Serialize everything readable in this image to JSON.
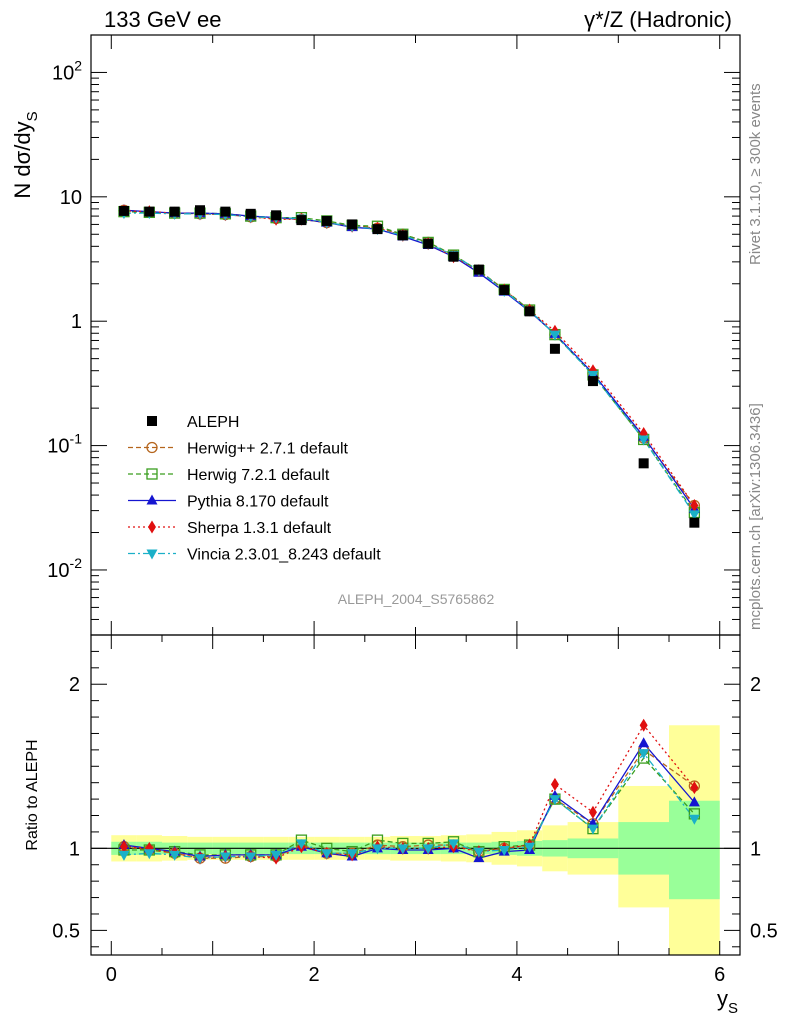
{
  "header": {
    "left": "133 GeV ee",
    "right": "γ*/Z (Hadronic)"
  },
  "side_labels": {
    "rivet": "Rivet 3.1.10, ≥ 300k events",
    "mcplots": "mcplots.cern.ch [arXiv:1306.3436]"
  },
  "watermark": "ALEPH_2004_S5765862",
  "chart_data": [
    {
      "type": "line",
      "title": "133 GeV ee",
      "xlabel": "y_S",
      "ylabel": "N dσ/dy_S",
      "xlim": [
        -0.2,
        6.2
      ],
      "ylim": [
        0.003,
        200
      ],
      "yscale": "log",
      "y_tick_labels": [
        "10^{-2}",
        "10^{-1}",
        "1",
        "10",
        "10^{2}"
      ],
      "x": [
        0.125,
        0.375,
        0.625,
        0.875,
        1.125,
        1.375,
        1.625,
        1.875,
        2.125,
        2.375,
        2.625,
        2.875,
        3.125,
        3.375,
        3.625,
        3.875,
        4.125,
        4.375,
        4.75,
        5.25,
        5.75
      ],
      "data": {
        "name": "ALEPH",
        "values": [
          7.7,
          7.6,
          7.6,
          7.8,
          7.6,
          7.3,
          7.1,
          6.5,
          6.4,
          6.0,
          5.5,
          4.9,
          4.2,
          3.3,
          2.6,
          1.78,
          1.2,
          0.6,
          0.33,
          0.072,
          0.024
        ]
      },
      "series": [
        {
          "name": "Herwig++ 2.7.1 default",
          "color": "#b5651d",
          "values": [
            7.8,
            7.5,
            7.4,
            7.3,
            7.2,
            6.9,
            6.7,
            6.6,
            6.2,
            5.9,
            5.6,
            5.0,
            4.3,
            3.4,
            2.55,
            1.78,
            1.23,
            0.78,
            0.38,
            0.115,
            0.033
          ]
        },
        {
          "name": "Herwig 7.2.1 default",
          "color": "#3a9e1f",
          "values": [
            7.6,
            7.5,
            7.4,
            7.4,
            7.3,
            7.0,
            6.8,
            6.8,
            6.4,
            5.9,
            5.8,
            5.0,
            4.3,
            3.4,
            2.55,
            1.8,
            1.23,
            0.78,
            0.37,
            0.112,
            0.029
          ]
        },
        {
          "name": "Pythia 8.170 default",
          "color": "#1515d0",
          "values": [
            7.8,
            7.6,
            7.4,
            7.4,
            7.3,
            7.0,
            6.8,
            6.6,
            6.2,
            5.7,
            5.5,
            4.8,
            4.1,
            3.3,
            2.45,
            1.73,
            1.2,
            0.79,
            0.38,
            0.118,
            0.031
          ]
        },
        {
          "name": "Sherpa 1.3.1 default",
          "color": "#e01010",
          "values": [
            7.7,
            7.6,
            7.4,
            7.3,
            7.2,
            6.9,
            6.6,
            6.6,
            6.2,
            5.8,
            5.6,
            4.9,
            4.2,
            3.3,
            2.55,
            1.78,
            1.23,
            0.83,
            0.4,
            0.125,
            0.033
          ]
        },
        {
          "name": "Vincia 2.3.01_8.243 default",
          "color": "#1bb0c8",
          "values": [
            7.4,
            7.4,
            7.3,
            7.3,
            7.2,
            6.9,
            6.8,
            6.7,
            6.2,
            5.8,
            5.5,
            4.9,
            4.2,
            3.4,
            2.55,
            1.75,
            1.22,
            0.78,
            0.37,
            0.112,
            0.028
          ]
        }
      ]
    },
    {
      "type": "line",
      "title": "",
      "xlabel": "y_S",
      "ylabel": "Ratio to ALEPH",
      "xlim": [
        -0.2,
        6.2
      ],
      "ylim": [
        0.35,
        2.3
      ],
      "x_ticks": [
        0,
        2,
        4,
        6
      ],
      "y_ticks": [
        0.5,
        1,
        2
      ],
      "reference_line": 1,
      "bands": {
        "x_edges": [
          0,
          0.25,
          0.5,
          0.75,
          1.0,
          1.25,
          1.5,
          1.75,
          2.0,
          2.25,
          2.5,
          2.75,
          3.0,
          3.25,
          3.5,
          3.75,
          4.0,
          4.25,
          4.5,
          5.0,
          5.5,
          6.0
        ],
        "stat_lo": [
          0.96,
          0.96,
          0.965,
          0.965,
          0.965,
          0.965,
          0.965,
          0.965,
          0.965,
          0.965,
          0.965,
          0.965,
          0.965,
          0.965,
          0.965,
          0.96,
          0.955,
          0.95,
          0.94,
          0.84,
          0.69
        ],
        "stat_hi": [
          1.04,
          1.04,
          1.035,
          1.035,
          1.035,
          1.035,
          1.035,
          1.035,
          1.035,
          1.035,
          1.035,
          1.035,
          1.035,
          1.035,
          1.035,
          1.04,
          1.045,
          1.05,
          1.06,
          1.16,
          1.29
        ],
        "total_lo": [
          0.92,
          0.92,
          0.925,
          0.93,
          0.93,
          0.93,
          0.93,
          0.93,
          0.93,
          0.93,
          0.93,
          0.925,
          0.925,
          0.92,
          0.915,
          0.9,
          0.89,
          0.86,
          0.84,
          0.64,
          0.35
        ],
        "total_hi": [
          1.08,
          1.08,
          1.075,
          1.07,
          1.07,
          1.07,
          1.07,
          1.07,
          1.07,
          1.07,
          1.07,
          1.075,
          1.075,
          1.08,
          1.085,
          1.1,
          1.11,
          1.14,
          1.16,
          1.38,
          1.75
        ]
      },
      "series": [
        {
          "name": "Herwig++ 2.7.1 default",
          "values": [
            1.01,
            0.99,
            0.97,
            0.94,
            0.94,
            0.95,
            0.95,
            1.02,
            0.97,
            0.97,
            1.02,
            1.01,
            1.02,
            1.02,
            0.98,
            1.0,
            1.02,
            1.3,
            1.15,
            1.6,
            1.38
          ]
        },
        {
          "name": "Herwig 7.2.1 default",
          "values": [
            0.99,
            0.99,
            0.98,
            0.96,
            0.96,
            0.96,
            0.96,
            1.05,
            1.0,
            0.98,
            1.05,
            1.03,
            1.03,
            1.04,
            0.98,
            1.01,
            1.02,
            1.3,
            1.12,
            1.55,
            1.21
          ]
        },
        {
          "name": "Pythia 8.170 default",
          "values": [
            1.02,
            1.0,
            0.98,
            0.95,
            0.96,
            0.96,
            0.96,
            1.01,
            0.97,
            0.95,
            1.0,
            0.99,
            0.99,
            1.0,
            0.94,
            0.98,
            0.99,
            1.32,
            1.15,
            1.64,
            1.28
          ]
        },
        {
          "name": "Sherpa 1.3.1 default",
          "values": [
            1.01,
            1.0,
            0.97,
            0.94,
            0.95,
            0.95,
            0.94,
            1.01,
            0.97,
            0.96,
            1.01,
            1.0,
            1.0,
            1.01,
            0.98,
            1.0,
            1.02,
            1.39,
            1.22,
            1.75,
            1.37
          ]
        },
        {
          "name": "Vincia 2.3.01_8.243 default",
          "values": [
            0.96,
            0.97,
            0.96,
            0.94,
            0.95,
            0.95,
            0.96,
            1.03,
            0.97,
            0.97,
            1.0,
            1.0,
            1.0,
            1.03,
            0.98,
            0.99,
            1.01,
            1.3,
            1.12,
            1.58,
            1.18
          ]
        }
      ]
    }
  ]
}
